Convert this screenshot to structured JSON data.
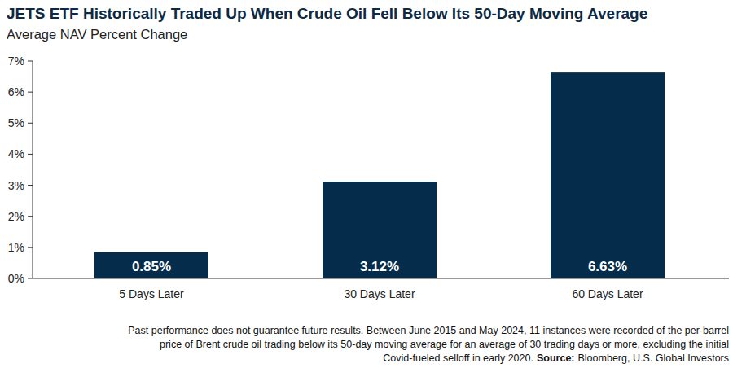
{
  "chart_data": {
    "type": "bar",
    "title": "JETS ETF Historically Traded Up When Crude Oil Fell Below Its 50-Day Moving Average",
    "subtitle": "Average NAV Percent Change",
    "categories": [
      "5 Days Later",
      "30 Days Later",
      "60 Days Later"
    ],
    "values": [
      0.85,
      3.12,
      6.63
    ],
    "value_labels": [
      "0.85%",
      "3.12%",
      "6.63%"
    ],
    "data_labels": true,
    "color": "#052c4b",
    "ylim": [
      0,
      7
    ],
    "yticks": [
      {
        "value": 0,
        "label": "0%"
      },
      {
        "value": 1,
        "label": "1%"
      },
      {
        "value": 2,
        "label": "2%"
      },
      {
        "value": 3,
        "label": "3%"
      },
      {
        "value": 4,
        "label": "4%"
      },
      {
        "value": 5,
        "label": "5%"
      },
      {
        "value": 6,
        "label": "6%"
      },
      {
        "value": 7,
        "label": "7%"
      }
    ],
    "grid": false,
    "footnote": [
      "Past performance does not guarantee future results. Between June 2015 and May 2024, 11 instances were recorded of the per-barrel",
      "price of Brent crude oil trading below its 50-day moving average for an average of 30 trading days or more, excluding the initial",
      "Covid-fueled selloff in early 2020."
    ],
    "source_label": "Source:",
    "source": "Bloomberg,  U.S. Global Investors"
  }
}
